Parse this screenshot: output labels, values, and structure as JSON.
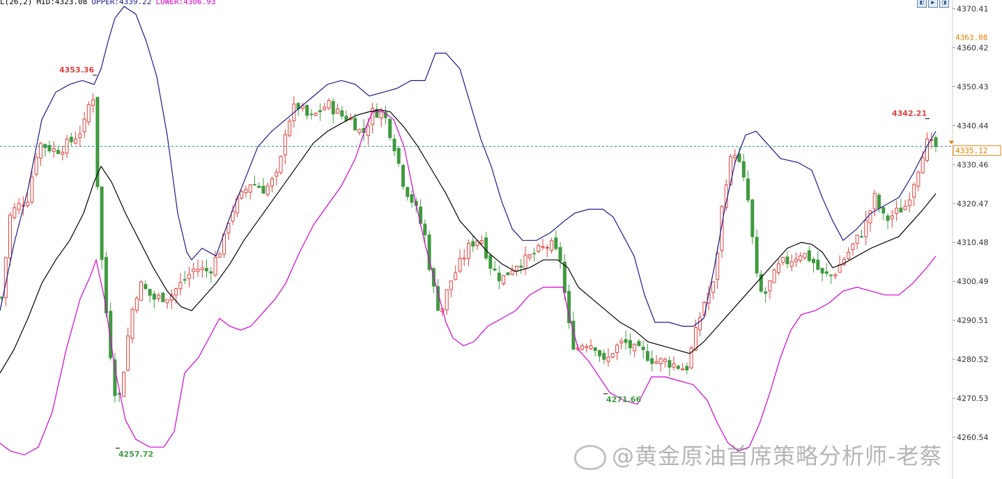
{
  "legend": {
    "params": "L(26,2)",
    "mid_label": "MID:",
    "mid_value": "4323.08",
    "upper_label": "UPPER:",
    "upper_value": "4339.22",
    "lower_label": "LOWER:",
    "lower_value": "4306.93"
  },
  "watermark": {
    "text": "@黄金原油首席策略分析师-老蔡"
  },
  "colors": {
    "up": "#e0403c",
    "down": "#3f9a3f",
    "mid": "#000000",
    "upper": "#1a1a8c",
    "lower": "#d400d4",
    "current": "#1b8a8a",
    "high_label": "#e0403c",
    "low_label": "#3f9a3f",
    "marker": "#e08000"
  },
  "chart_data": {
    "type": "candlestick",
    "ylim": [
      4255.0,
      4372.0
    ],
    "y_ticks": [
      "4370.41",
      "4360.42",
      "4350.43",
      "4340.44",
      "4330.46",
      "4320.47",
      "4310.48",
      "4300.49",
      "4290.51",
      "4280.52",
      "4270.53",
      "4260.54"
    ],
    "current_price": "4335.12",
    "marker_price": "4363.08",
    "annotations": [
      {
        "text": "4353.36",
        "kind": "high",
        "bar": 133,
        "price": 4353.36
      },
      {
        "text": "4257.72",
        "kind": "low",
        "bar": 166,
        "price": 4257.72
      },
      {
        "text": "4271.66",
        "kind": "low",
        "bar": 866,
        "price": 4271.66
      },
      {
        "text": "4342.21",
        "kind": "high",
        "bar": 1328,
        "price": 4342.21
      }
    ],
    "bars_x_range": [
      2,
      1343
    ],
    "bar_count": 215,
    "close_path": [
      [
        0,
        4293
      ],
      [
        15,
        4318
      ],
      [
        40,
        4322
      ],
      [
        55,
        4336
      ],
      [
        80,
        4334
      ],
      [
        100,
        4336
      ],
      [
        120,
        4340
      ],
      [
        133,
        4350
      ],
      [
        140,
        4325
      ],
      [
        148,
        4300
      ],
      [
        158,
        4283
      ],
      [
        168,
        4268
      ],
      [
        175,
        4275
      ],
      [
        188,
        4292
      ],
      [
        200,
        4300
      ],
      [
        220,
        4296
      ],
      [
        245,
        4297
      ],
      [
        260,
        4300
      ],
      [
        280,
        4304
      ],
      [
        300,
        4303
      ],
      [
        320,
        4310
      ],
      [
        330,
        4318
      ],
      [
        345,
        4322
      ],
      [
        360,
        4326
      ],
      [
        380,
        4324
      ],
      [
        400,
        4328
      ],
      [
        410,
        4340
      ],
      [
        425,
        4346
      ],
      [
        445,
        4342
      ],
      [
        470,
        4346
      ],
      [
        490,
        4343
      ],
      [
        505,
        4342
      ],
      [
        520,
        4338
      ],
      [
        535,
        4344
      ],
      [
        550,
        4344
      ],
      [
        565,
        4336
      ],
      [
        580,
        4325
      ],
      [
        595,
        4320
      ],
      [
        610,
        4312
      ],
      [
        620,
        4300
      ],
      [
        632,
        4292
      ],
      [
        645,
        4300
      ],
      [
        660,
        4305
      ],
      [
        675,
        4310
      ],
      [
        690,
        4312
      ],
      [
        705,
        4304
      ],
      [
        720,
        4301
      ],
      [
        740,
        4305
      ],
      [
        755,
        4306
      ],
      [
        770,
        4308
      ],
      [
        790,
        4310
      ],
      [
        805,
        4306
      ],
      [
        815,
        4290
      ],
      [
        825,
        4283
      ],
      [
        840,
        4285
      ],
      [
        855,
        4284
      ],
      [
        868,
        4279
      ],
      [
        880,
        4283
      ],
      [
        895,
        4285
      ],
      [
        910,
        4283
      ],
      [
        925,
        4282
      ],
      [
        940,
        4280
      ],
      [
        955,
        4280
      ],
      [
        970,
        4279
      ],
      [
        985,
        4278
      ],
      [
        995,
        4285
      ],
      [
        1010,
        4295
      ],
      [
        1025,
        4300
      ],
      [
        1035,
        4318
      ],
      [
        1045,
        4330
      ],
      [
        1055,
        4334
      ],
      [
        1065,
        4328
      ],
      [
        1075,
        4320
      ],
      [
        1085,
        4302
      ],
      [
        1095,
        4296
      ],
      [
        1105,
        4300
      ],
      [
        1120,
        4305
      ],
      [
        1135,
        4306
      ],
      [
        1150,
        4308
      ],
      [
        1165,
        4306
      ],
      [
        1180,
        4302
      ],
      [
        1195,
        4302
      ],
      [
        1210,
        4306
      ],
      [
        1225,
        4310
      ],
      [
        1240,
        4314
      ],
      [
        1255,
        4322
      ],
      [
        1270,
        4316
      ],
      [
        1285,
        4318
      ],
      [
        1300,
        4320
      ],
      [
        1315,
        4328
      ],
      [
        1328,
        4336
      ],
      [
        1343,
        4335
      ]
    ],
    "bb_mid": [
      [
        0,
        4277
      ],
      [
        20,
        4283
      ],
      [
        40,
        4291
      ],
      [
        60,
        4300
      ],
      [
        80,
        4306
      ],
      [
        100,
        4311
      ],
      [
        120,
        4318
      ],
      [
        135,
        4326
      ],
      [
        145,
        4330
      ],
      [
        160,
        4326
      ],
      [
        180,
        4318
      ],
      [
        200,
        4311
      ],
      [
        220,
        4304
      ],
      [
        240,
        4298
      ],
      [
        260,
        4294
      ],
      [
        275,
        4293
      ],
      [
        290,
        4296
      ],
      [
        310,
        4300
      ],
      [
        330,
        4305
      ],
      [
        350,
        4311
      ],
      [
        370,
        4316
      ],
      [
        390,
        4321
      ],
      [
        410,
        4326
      ],
      [
        430,
        4331
      ],
      [
        450,
        4336
      ],
      [
        470,
        4339
      ],
      [
        490,
        4341
      ],
      [
        510,
        4343
      ],
      [
        530,
        4344
      ],
      [
        545,
        4344.5
      ],
      [
        560,
        4344
      ],
      [
        580,
        4340
      ],
      [
        600,
        4335
      ],
      [
        620,
        4329
      ],
      [
        640,
        4323
      ],
      [
        660,
        4316
      ],
      [
        680,
        4312
      ],
      [
        700,
        4308
      ],
      [
        720,
        4305
      ],
      [
        740,
        4303
      ],
      [
        760,
        4304
      ],
      [
        780,
        4306
      ],
      [
        800,
        4306
      ],
      [
        815,
        4304
      ],
      [
        830,
        4299
      ],
      [
        850,
        4296
      ],
      [
        870,
        4293
      ],
      [
        890,
        4290
      ],
      [
        910,
        4288
      ],
      [
        930,
        4285
      ],
      [
        950,
        4284
      ],
      [
        970,
        4283
      ],
      [
        990,
        4282
      ],
      [
        1010,
        4285
      ],
      [
        1030,
        4289
      ],
      [
        1050,
        4293
      ],
      [
        1070,
        4297
      ],
      [
        1090,
        4301
      ],
      [
        1110,
        4305
      ],
      [
        1130,
        4309
      ],
      [
        1150,
        4310.5
      ],
      [
        1165,
        4310
      ],
      [
        1180,
        4308
      ],
      [
        1195,
        4304
      ],
      [
        1210,
        4305
      ],
      [
        1230,
        4307
      ],
      [
        1250,
        4309
      ],
      [
        1270,
        4310.5
      ],
      [
        1290,
        4312
      ],
      [
        1310,
        4316
      ],
      [
        1325,
        4319
      ],
      [
        1343,
        4323
      ]
    ],
    "bb_upper": [
      [
        0,
        4293
      ],
      [
        20,
        4310
      ],
      [
        40,
        4324
      ],
      [
        60,
        4342
      ],
      [
        80,
        4349
      ],
      [
        100,
        4351
      ],
      [
        118,
        4352
      ],
      [
        135,
        4351
      ],
      [
        145,
        4355
      ],
      [
        155,
        4362
      ],
      [
        165,
        4368
      ],
      [
        178,
        4371
      ],
      [
        195,
        4369
      ],
      [
        210,
        4362
      ],
      [
        225,
        4353
      ],
      [
        240,
        4338
      ],
      [
        255,
        4318
      ],
      [
        268,
        4308
      ],
      [
        275,
        4306
      ],
      [
        290,
        4309
      ],
      [
        310,
        4307
      ],
      [
        330,
        4317
      ],
      [
        350,
        4326
      ],
      [
        370,
        4335
      ],
      [
        390,
        4339
      ],
      [
        410,
        4342
      ],
      [
        430,
        4345
      ],
      [
        450,
        4348
      ],
      [
        470,
        4351
      ],
      [
        490,
        4352
      ],
      [
        510,
        4351
      ],
      [
        530,
        4348
      ],
      [
        550,
        4349
      ],
      [
        570,
        4350
      ],
      [
        590,
        4352
      ],
      [
        610,
        4352
      ],
      [
        625,
        4359
      ],
      [
        640,
        4359
      ],
      [
        660,
        4355
      ],
      [
        675,
        4346
      ],
      [
        690,
        4337
      ],
      [
        705,
        4330
      ],
      [
        720,
        4321
      ],
      [
        735,
        4314
      ],
      [
        750,
        4311
      ],
      [
        770,
        4311
      ],
      [
        790,
        4313
      ],
      [
        810,
        4316
      ],
      [
        825,
        4318
      ],
      [
        845,
        4319
      ],
      [
        865,
        4319
      ],
      [
        880,
        4317
      ],
      [
        895,
        4312
      ],
      [
        910,
        4307
      ],
      [
        925,
        4297
      ],
      [
        940,
        4290
      ],
      [
        960,
        4290
      ],
      [
        980,
        4289
      ],
      [
        995,
        4289
      ],
      [
        1010,
        4291
      ],
      [
        1025,
        4304
      ],
      [
        1040,
        4319
      ],
      [
        1055,
        4331
      ],
      [
        1070,
        4338
      ],
      [
        1085,
        4339
      ],
      [
        1100,
        4336
      ],
      [
        1120,
        4332
      ],
      [
        1145,
        4331
      ],
      [
        1165,
        4329
      ],
      [
        1180,
        4322
      ],
      [
        1195,
        4316
      ],
      [
        1210,
        4311
      ],
      [
        1230,
        4314
      ],
      [
        1250,
        4318
      ],
      [
        1270,
        4320
      ],
      [
        1290,
        4322
      ],
      [
        1310,
        4328
      ],
      [
        1330,
        4335
      ],
      [
        1343,
        4339
      ]
    ],
    "bb_lower": [
      [
        0,
        4259
      ],
      [
        15,
        4257
      ],
      [
        35,
        4256
      ],
      [
        55,
        4258
      ],
      [
        75,
        4267
      ],
      [
        95,
        4283
      ],
      [
        115,
        4296
      ],
      [
        130,
        4302
      ],
      [
        138,
        4306
      ],
      [
        150,
        4296
      ],
      [
        165,
        4278
      ],
      [
        180,
        4265
      ],
      [
        195,
        4260
      ],
      [
        215,
        4258
      ],
      [
        235,
        4258
      ],
      [
        250,
        4262
      ],
      [
        265,
        4277
      ],
      [
        285,
        4281
      ],
      [
        300,
        4286
      ],
      [
        315,
        4291
      ],
      [
        330,
        4289
      ],
      [
        345,
        4288
      ],
      [
        360,
        4289
      ],
      [
        375,
        4292
      ],
      [
        395,
        4296
      ],
      [
        410,
        4300
      ],
      [
        430,
        4308
      ],
      [
        450,
        4315
      ],
      [
        470,
        4320
      ],
      [
        490,
        4325
      ],
      [
        510,
        4332
      ],
      [
        525,
        4340
      ],
      [
        535,
        4344
      ],
      [
        550,
        4344
      ],
      [
        565,
        4342
      ],
      [
        580,
        4335
      ],
      [
        595,
        4322
      ],
      [
        610,
        4310
      ],
      [
        625,
        4300
      ],
      [
        640,
        4290
      ],
      [
        650,
        4286
      ],
      [
        665,
        4284
      ],
      [
        680,
        4285
      ],
      [
        700,
        4289
      ],
      [
        720,
        4291
      ],
      [
        740,
        4293
      ],
      [
        760,
        4297
      ],
      [
        780,
        4299
      ],
      [
        808,
        4299
      ],
      [
        815,
        4293
      ],
      [
        830,
        4283
      ],
      [
        845,
        4280
      ],
      [
        860,
        4276
      ],
      [
        875,
        4272
      ],
      [
        895,
        4270
      ],
      [
        915,
        4269
      ],
      [
        935,
        4276
      ],
      [
        955,
        4276
      ],
      [
        975,
        4275
      ],
      [
        995,
        4274
      ],
      [
        1015,
        4270
      ],
      [
        1030,
        4264
      ],
      [
        1045,
        4259
      ],
      [
        1060,
        4257
      ],
      [
        1075,
        4258
      ],
      [
        1090,
        4264
      ],
      [
        1105,
        4272
      ],
      [
        1120,
        4281
      ],
      [
        1135,
        4288
      ],
      [
        1150,
        4292
      ],
      [
        1170,
        4293
      ],
      [
        1190,
        4295
      ],
      [
        1210,
        4298
      ],
      [
        1230,
        4299
      ],
      [
        1250,
        4298
      ],
      [
        1270,
        4297
      ],
      [
        1290,
        4297
      ],
      [
        1310,
        4300
      ],
      [
        1330,
        4304
      ],
      [
        1343,
        4307
      ]
    ]
  }
}
